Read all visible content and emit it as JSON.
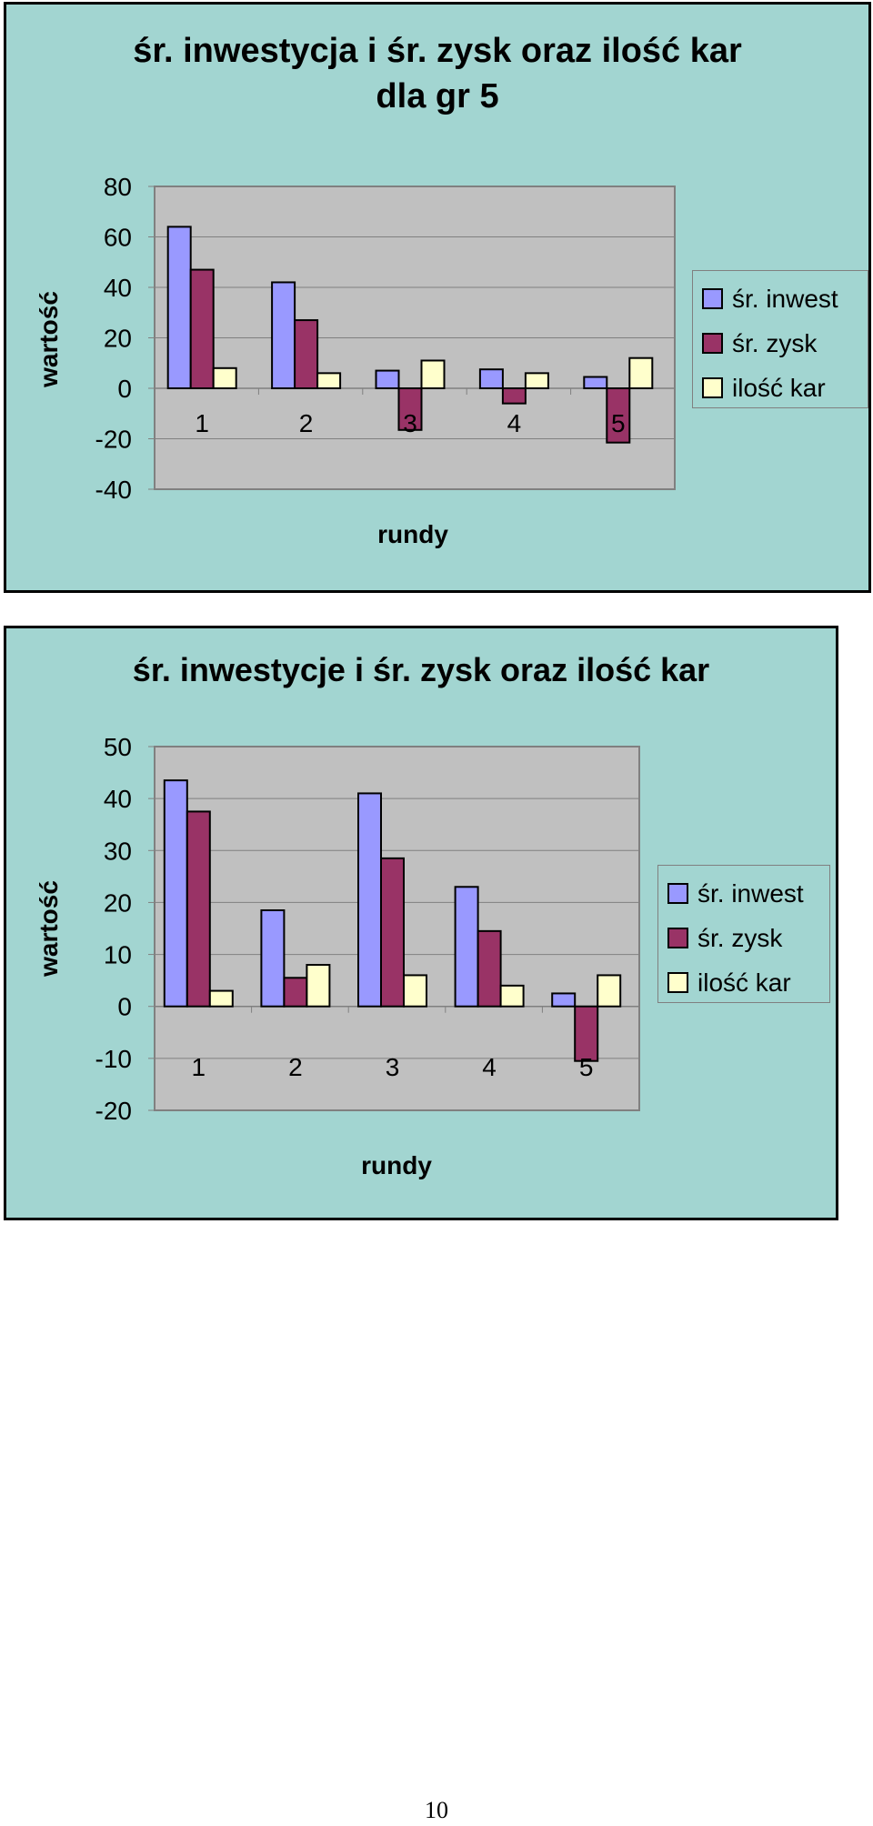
{
  "chart_data": [
    {
      "type": "bar",
      "title": "śr. inwestycja i śr. zysk oraz ilość kar\ndla gr 5",
      "title_lines": [
        "śr. inwestycja i śr. zysk oraz ilość kar",
        "dla gr 5"
      ],
      "xlabel": "rundy",
      "ylabel": "wartość",
      "categories": [
        "1",
        "2",
        "3",
        "4",
        "5"
      ],
      "ylim": [
        -40,
        80
      ],
      "yticks": [
        "80",
        "60",
        "40",
        "20",
        "0",
        "-20",
        "-40"
      ],
      "ytick_values": [
        80,
        60,
        40,
        20,
        0,
        -20,
        -40
      ],
      "grid": true,
      "legend_position": "right",
      "series": [
        {
          "name": "śr. inwest",
          "values": [
            64,
            42,
            7,
            7.5,
            4.5
          ],
          "color": "#9999ff"
        },
        {
          "name": "śr. zysk",
          "values": [
            47,
            27,
            -16.5,
            -6,
            -21.5
          ],
          "color": "#993366"
        },
        {
          "name": "ilość kar",
          "values": [
            8,
            6,
            11,
            6,
            12
          ],
          "color": "#ffffcc"
        }
      ],
      "plot_background": "#c0c0c0"
    },
    {
      "type": "bar",
      "title": "śr. inwestycje i śr. zysk oraz ilość kar",
      "title_lines": [
        "śr. inwestycje i śr. zysk oraz ilość kar"
      ],
      "xlabel": "rundy",
      "ylabel": "wartość",
      "categories": [
        "1",
        "2",
        "3",
        "4",
        "5"
      ],
      "ylim": [
        -20,
        50
      ],
      "yticks": [
        "50",
        "40",
        "30",
        "20",
        "10",
        "0",
        "-10",
        "-20"
      ],
      "ytick_values": [
        50,
        40,
        30,
        20,
        10,
        0,
        -10,
        -20
      ],
      "grid": true,
      "legend_position": "right",
      "series": [
        {
          "name": "śr. inwest",
          "values": [
            43.5,
            18.5,
            41,
            23,
            2.5
          ],
          "color": "#9999ff"
        },
        {
          "name": "śr. zysk",
          "values": [
            37.5,
            5.5,
            28.5,
            14.5,
            -10.5
          ],
          "color": "#993366"
        },
        {
          "name": "ilość kar",
          "values": [
            3,
            8,
            6,
            4,
            6
          ],
          "color": "#ffffcc"
        }
      ],
      "plot_background": "#c0c0c0"
    }
  ],
  "colors": {
    "panel_background": "#a2d5d1",
    "plot_background": "#c0c0c0",
    "gridline": "#808080",
    "border": "#000000"
  },
  "page": {
    "number": "10"
  }
}
